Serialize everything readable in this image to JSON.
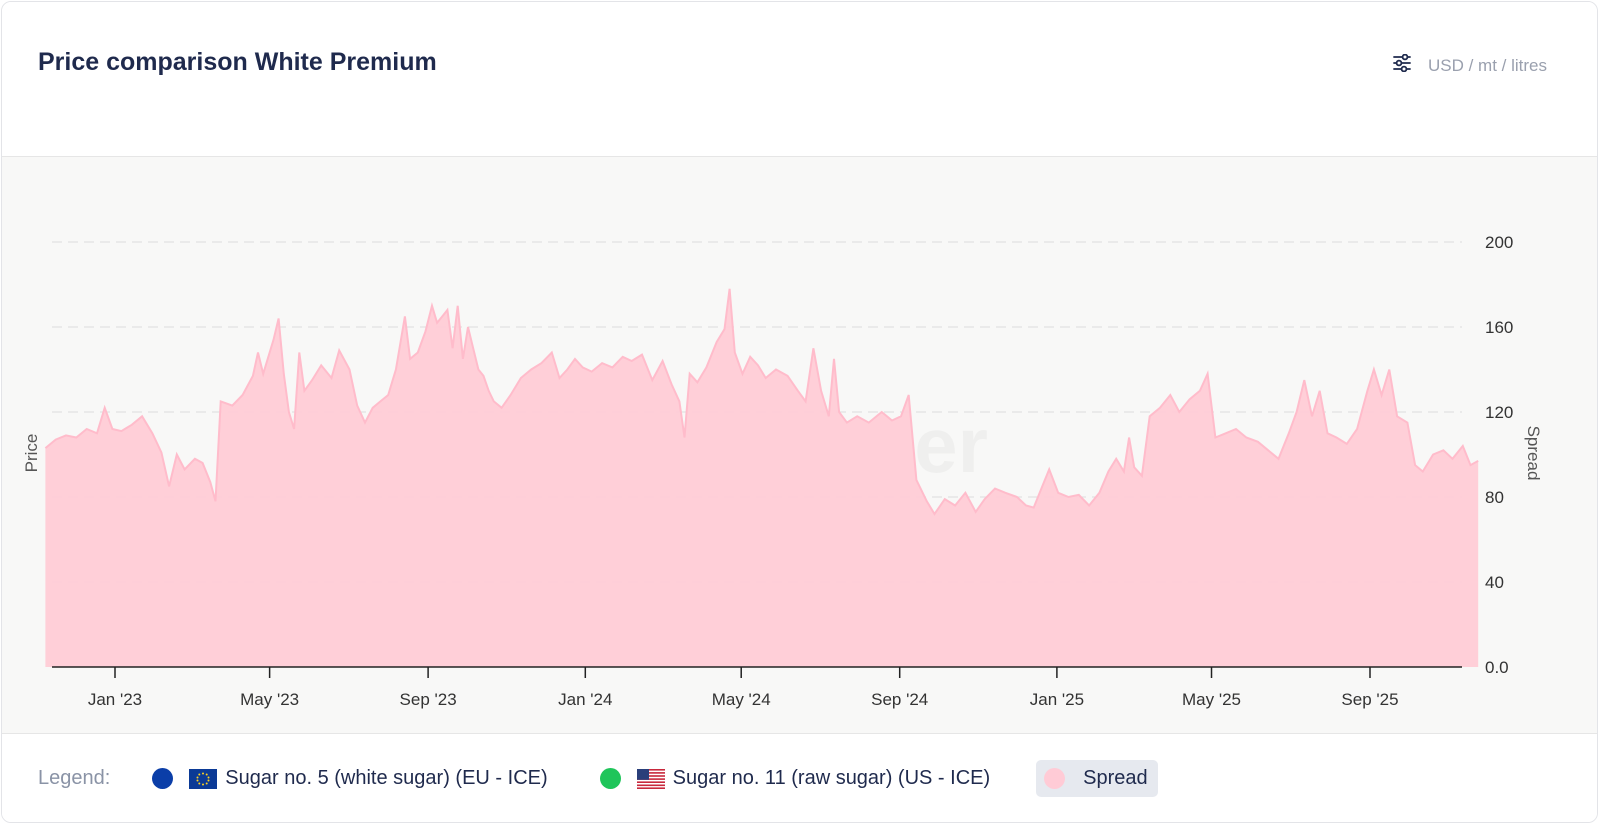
{
  "header": {
    "title": "Price comparison White Premium",
    "unit_label": "USD / mt / litres",
    "settings_icon": "sliders-icon"
  },
  "legend": {
    "label": "Legend:",
    "items": [
      {
        "name": "Sugar no. 5 (white sugar) (EU - ICE)",
        "color": "#0b3ea8",
        "flag": "eu-flag-icon"
      },
      {
        "name": "Sugar no. 11 (raw sugar) (US - ICE)",
        "color": "#1fc55a",
        "flag": "us-flag-icon"
      },
      {
        "name": "Spread",
        "color": "#ffcbd6",
        "active": true
      }
    ]
  },
  "watermark": "Vesper",
  "colors": {
    "spread_fill": "#ffccd6",
    "spread_line": "#ffbccb",
    "title": "#1f2a4d",
    "axis_text": "#333333"
  },
  "chart_data": {
    "type": "area",
    "ylabel_left": "Price",
    "ylabel_right": "Spread",
    "ylim": [
      0,
      200
    ],
    "y_ticks": [
      "0.0",
      "40",
      "80",
      "120",
      "160",
      "200"
    ],
    "x_ticks": [
      "Jan '23",
      "May '23",
      "Sep '23",
      "Jan '24",
      "May '24",
      "Sep '24",
      "Jan '25",
      "May '25",
      "Sep '25"
    ],
    "x_tick_dates": [
      "2023-01-01",
      "2023-05-01",
      "2023-09-01",
      "2024-01-01",
      "2024-05-01",
      "2024-09-01",
      "2025-01-01",
      "2025-05-01",
      "2025-09-01"
    ],
    "grid": "horizontal dashed",
    "series": [
      {
        "name": "Spread",
        "points": [
          [
            "2022-11-08",
            103
          ],
          [
            "2022-11-16",
            107
          ],
          [
            "2022-11-24",
            109
          ],
          [
            "2022-12-02",
            108
          ],
          [
            "2022-12-10",
            112
          ],
          [
            "2022-12-18",
            110
          ],
          [
            "2022-12-24",
            122
          ],
          [
            "2022-12-30",
            112
          ],
          [
            "2023-01-06",
            111
          ],
          [
            "2023-01-14",
            114
          ],
          [
            "2023-01-22",
            118
          ],
          [
            "2023-01-30",
            110
          ],
          [
            "2023-02-06",
            101
          ],
          [
            "2023-02-12",
            85
          ],
          [
            "2023-02-18",
            100
          ],
          [
            "2023-02-24",
            93
          ],
          [
            "2023-03-04",
            98
          ],
          [
            "2023-03-10",
            96
          ],
          [
            "2023-03-16",
            87
          ],
          [
            "2023-03-20",
            78
          ],
          [
            "2023-03-24",
            125
          ],
          [
            "2023-04-02",
            123
          ],
          [
            "2023-04-10",
            128
          ],
          [
            "2023-04-18",
            137
          ],
          [
            "2023-04-22",
            148
          ],
          [
            "2023-04-26",
            138
          ],
          [
            "2023-05-04",
            154
          ],
          [
            "2023-05-08",
            164
          ],
          [
            "2023-05-12",
            138
          ],
          [
            "2023-05-16",
            120
          ],
          [
            "2023-05-20",
            112
          ],
          [
            "2023-05-24",
            148
          ],
          [
            "2023-05-28",
            130
          ],
          [
            "2023-06-03",
            135
          ],
          [
            "2023-06-10",
            142
          ],
          [
            "2023-06-18",
            136
          ],
          [
            "2023-06-24",
            149
          ],
          [
            "2023-07-02",
            140
          ],
          [
            "2023-07-08",
            123
          ],
          [
            "2023-07-14",
            115
          ],
          [
            "2023-07-20",
            122
          ],
          [
            "2023-07-26",
            125
          ],
          [
            "2023-08-01",
            128
          ],
          [
            "2023-08-07",
            140
          ],
          [
            "2023-08-14",
            165
          ],
          [
            "2023-08-18",
            145
          ],
          [
            "2023-08-24",
            148
          ],
          [
            "2023-08-30",
            158
          ],
          [
            "2023-09-04",
            170
          ],
          [
            "2023-09-08",
            162
          ],
          [
            "2023-09-12",
            165
          ],
          [
            "2023-09-16",
            168
          ],
          [
            "2023-09-20",
            150
          ],
          [
            "2023-09-24",
            170
          ],
          [
            "2023-09-28",
            145
          ],
          [
            "2023-10-02",
            160
          ],
          [
            "2023-10-06",
            150
          ],
          [
            "2023-10-10",
            140
          ],
          [
            "2023-10-14",
            137
          ],
          [
            "2023-10-18",
            130
          ],
          [
            "2023-10-22",
            125
          ],
          [
            "2023-10-28",
            122
          ],
          [
            "2023-11-04",
            128
          ],
          [
            "2023-11-12",
            136
          ],
          [
            "2023-11-20",
            140
          ],
          [
            "2023-11-28",
            143
          ],
          [
            "2023-12-06",
            148
          ],
          [
            "2023-12-12",
            136
          ],
          [
            "2023-12-18",
            140
          ],
          [
            "2023-12-24",
            145
          ],
          [
            "2023-12-30",
            141
          ],
          [
            "2024-01-06",
            139
          ],
          [
            "2024-01-14",
            143
          ],
          [
            "2024-01-22",
            141
          ],
          [
            "2024-01-30",
            146
          ],
          [
            "2024-02-06",
            144
          ],
          [
            "2024-02-14",
            147
          ],
          [
            "2024-02-22",
            135
          ],
          [
            "2024-03-01",
            144
          ],
          [
            "2024-03-08",
            133
          ],
          [
            "2024-03-14",
            125
          ],
          [
            "2024-03-18",
            108
          ],
          [
            "2024-03-22",
            138
          ],
          [
            "2024-03-28",
            134
          ],
          [
            "2024-04-04",
            141
          ],
          [
            "2024-04-12",
            153
          ],
          [
            "2024-04-18",
            159
          ],
          [
            "2024-04-22",
            178
          ],
          [
            "2024-04-26",
            148
          ],
          [
            "2024-05-02",
            138
          ],
          [
            "2024-05-08",
            146
          ],
          [
            "2024-05-14",
            142
          ],
          [
            "2024-05-20",
            136
          ],
          [
            "2024-05-28",
            140
          ],
          [
            "2024-06-06",
            137
          ],
          [
            "2024-06-14",
            130
          ],
          [
            "2024-06-20",
            125
          ],
          [
            "2024-06-26",
            150
          ],
          [
            "2024-07-02",
            130
          ],
          [
            "2024-07-08",
            118
          ],
          [
            "2024-07-12",
            145
          ],
          [
            "2024-07-16",
            120
          ],
          [
            "2024-07-22",
            115
          ],
          [
            "2024-07-30",
            118
          ],
          [
            "2024-08-08",
            115
          ],
          [
            "2024-08-18",
            120
          ],
          [
            "2024-08-26",
            116
          ],
          [
            "2024-09-02",
            118
          ],
          [
            "2024-09-08",
            128
          ],
          [
            "2024-09-14",
            88
          ],
          [
            "2024-09-22",
            78
          ],
          [
            "2024-09-28",
            72
          ],
          [
            "2024-10-06",
            79
          ],
          [
            "2024-10-14",
            76
          ],
          [
            "2024-10-22",
            82
          ],
          [
            "2024-10-30",
            73
          ],
          [
            "2024-11-06",
            79
          ],
          [
            "2024-11-14",
            84
          ],
          [
            "2024-11-22",
            82
          ],
          [
            "2024-12-01",
            80
          ],
          [
            "2024-12-08",
            76
          ],
          [
            "2024-12-14",
            75
          ],
          [
            "2024-12-20",
            84
          ],
          [
            "2024-12-26",
            93
          ],
          [
            "2025-01-02",
            82
          ],
          [
            "2025-01-10",
            80
          ],
          [
            "2025-01-18",
            81
          ],
          [
            "2025-01-26",
            76
          ],
          [
            "2025-02-03",
            82
          ],
          [
            "2025-02-10",
            92
          ],
          [
            "2025-02-16",
            98
          ],
          [
            "2025-02-22",
            92
          ],
          [
            "2025-02-26",
            108
          ],
          [
            "2025-03-02",
            94
          ],
          [
            "2025-03-08",
            90
          ],
          [
            "2025-03-14",
            118
          ],
          [
            "2025-03-22",
            122
          ],
          [
            "2025-03-30",
            128
          ],
          [
            "2025-04-06",
            120
          ],
          [
            "2025-04-14",
            126
          ],
          [
            "2025-04-22",
            130
          ],
          [
            "2025-04-28",
            138
          ],
          [
            "2025-05-04",
            108
          ],
          [
            "2025-05-12",
            110
          ],
          [
            "2025-05-20",
            112
          ],
          [
            "2025-05-28",
            108
          ],
          [
            "2025-06-06",
            106
          ],
          [
            "2025-06-14",
            102
          ],
          [
            "2025-06-22",
            98
          ],
          [
            "2025-06-30",
            110
          ],
          [
            "2025-07-06",
            120
          ],
          [
            "2025-07-12",
            135
          ],
          [
            "2025-07-18",
            118
          ],
          [
            "2025-07-24",
            130
          ],
          [
            "2025-07-30",
            110
          ],
          [
            "2025-08-06",
            108
          ],
          [
            "2025-08-14",
            105
          ],
          [
            "2025-08-22",
            112
          ],
          [
            "2025-08-30",
            130
          ],
          [
            "2025-09-04",
            140
          ],
          [
            "2025-09-10",
            128
          ],
          [
            "2025-09-16",
            140
          ],
          [
            "2025-09-22",
            118
          ],
          [
            "2025-09-30",
            115
          ],
          [
            "2025-10-06",
            95
          ],
          [
            "2025-10-12",
            92
          ],
          [
            "2025-10-20",
            100
          ],
          [
            "2025-10-28",
            102
          ],
          [
            "2025-11-04",
            98
          ],
          [
            "2025-11-12",
            104
          ],
          [
            "2025-11-18",
            95
          ],
          [
            "2025-11-24",
            97
          ]
        ]
      }
    ]
  }
}
